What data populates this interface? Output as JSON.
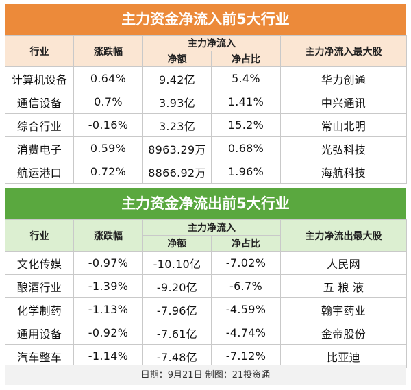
{
  "inflow": {
    "title": "主力资金净流入前5大行业",
    "headers": {
      "industry": "行业",
      "change": "涨跌幅",
      "main_net": "主力净流入",
      "net_amount": "净额",
      "net_ratio": "净占比",
      "top_stock": "主力净流入最大股"
    },
    "rows": [
      {
        "industry": "计算机设备",
        "change": "0.64%",
        "amount": "9.42亿",
        "ratio": "5.4%",
        "stock": "华力创通"
      },
      {
        "industry": "通信设备",
        "change": "0.7%",
        "amount": "3.93亿",
        "ratio": "1.41%",
        "stock": "中兴通讯"
      },
      {
        "industry": "综合行业",
        "change": "-0.16%",
        "amount": "3.23亿",
        "ratio": "15.2%",
        "stock": "常山北明"
      },
      {
        "industry": "消费电子",
        "change": "0.59%",
        "amount": "8963.29万",
        "ratio": "0.68%",
        "stock": "光弘科技"
      },
      {
        "industry": "航运港口",
        "change": "0.72%",
        "amount": "8866.92万",
        "ratio": "1.96%",
        "stock": "海航科技"
      }
    ]
  },
  "outflow": {
    "title": "主力资金净流出前5大行业",
    "headers": {
      "industry": "行业",
      "change": "涨跌幅",
      "main_net": "主力净流入",
      "net_amount": "净额",
      "net_ratio": "净占比",
      "top_stock": "主力净流出最大股"
    },
    "rows": [
      {
        "industry": "文化传媒",
        "change": "-0.97%",
        "amount": "-10.10亿",
        "ratio": "-7.02%",
        "stock": "人民网"
      },
      {
        "industry": "酿酒行业",
        "change": "-1.39%",
        "amount": "-9.20亿",
        "ratio": "-6.7%",
        "stock": "五 粮 液"
      },
      {
        "industry": "化学制药",
        "change": "-1.13%",
        "amount": "-7.96亿",
        "ratio": "-4.59%",
        "stock": "翰宇药业"
      },
      {
        "industry": "通用设备",
        "change": "-0.92%",
        "amount": "-7.61亿",
        "ratio": "-4.74%",
        "stock": "金帝股份"
      },
      {
        "industry": "汽车整车",
        "change": "-1.14%",
        "amount": "-7.48亿",
        "ratio": "-7.12%",
        "stock": "比亚迪"
      }
    ]
  },
  "footer": "日期：9月21日 制图：21投资通"
}
